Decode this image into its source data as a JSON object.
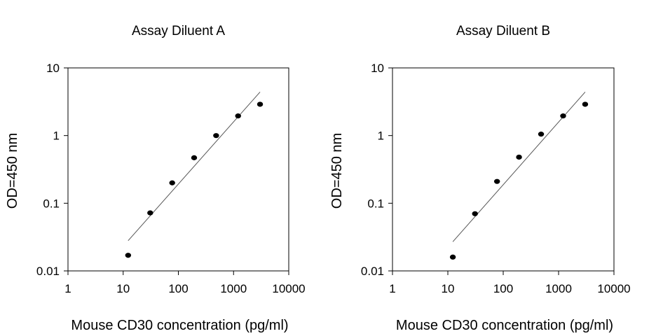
{
  "chart_data": [
    {
      "type": "scatter",
      "title": "Assay Diluent A",
      "xlabel": "Mouse CD30 concentration (pg/ml)",
      "ylabel": "OD=450 nm",
      "xscale": "log",
      "yscale": "log",
      "xlim": [
        1,
        10000
      ],
      "ylim": [
        0.01,
        10
      ],
      "xticks": [
        1,
        10,
        100,
        1000,
        10000
      ],
      "xtick_labels": [
        "1",
        "10",
        "100",
        "1000",
        "10000"
      ],
      "yticks": [
        0.01,
        0.1,
        1,
        10
      ],
      "ytick_labels": [
        "0.01",
        "0.1",
        "1",
        "10"
      ],
      "grid": false,
      "points": {
        "x": [
          12.3,
          30.9,
          77.3,
          193,
          483,
          1208,
          3020
        ],
        "y": [
          0.017,
          0.072,
          0.2,
          0.47,
          1.0,
          1.95,
          2.9
        ]
      },
      "fit_line": {
        "x": [
          12.3,
          3020
        ],
        "y": [
          0.028,
          4.4
        ]
      },
      "marker_color": "#000000",
      "line_color": "#555555"
    },
    {
      "type": "scatter",
      "title": "Assay Diluent B",
      "xlabel": "Mouse CD30 concentration (pg/ml)",
      "ylabel": "OD=450 nm",
      "xscale": "log",
      "yscale": "log",
      "xlim": [
        1,
        10000
      ],
      "ylim": [
        0.01,
        10
      ],
      "xticks": [
        1,
        10,
        100,
        1000,
        10000
      ],
      "xtick_labels": [
        "1",
        "10",
        "100",
        "1000",
        "10000"
      ],
      "yticks": [
        0.01,
        0.1,
        1,
        10
      ],
      "ytick_labels": [
        "0.01",
        "0.1",
        "1",
        "10"
      ],
      "grid": false,
      "points": {
        "x": [
          12.3,
          30.9,
          77.3,
          193,
          483,
          1208,
          3020
        ],
        "y": [
          0.016,
          0.07,
          0.21,
          0.48,
          1.05,
          1.95,
          2.9
        ]
      },
      "fit_line": {
        "x": [
          12.3,
          3020
        ],
        "y": [
          0.027,
          4.4
        ]
      },
      "marker_color": "#000000",
      "line_color": "#555555"
    }
  ]
}
